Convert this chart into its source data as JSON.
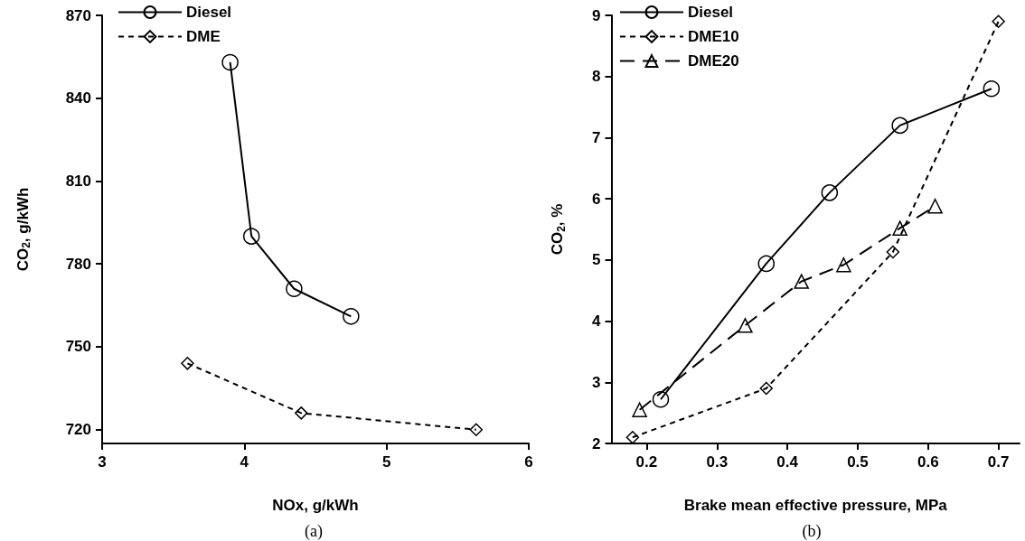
{
  "chart_data": [
    {
      "type": "line",
      "xlabel": "NOx, g/kWh",
      "ylabel": "CO$_{2}$, g/kWh",
      "annotations": [
        "(a)"
      ],
      "xlim": [
        3,
        6
      ],
      "xticks": [
        3,
        4,
        5,
        6
      ],
      "ylim": [
        715,
        870
      ],
      "yticks": [
        720,
        750,
        780,
        810,
        840,
        870
      ],
      "grid": false,
      "legend": "top left",
      "series": [
        {
          "name": "Diesel",
          "color": "#000000",
          "marker": "circle",
          "line_style": "solid",
          "x": [
            3.9,
            4.05,
            4.35,
            4.75
          ],
          "values": [
            853,
            790,
            771,
            761
          ]
        },
        {
          "name": "DME",
          "color": "#000000",
          "marker": "diamond",
          "line_style": "dotted",
          "x": [
            3.6,
            4.4,
            5.63
          ],
          "values": [
            744,
            726,
            720
          ]
        }
      ]
    },
    {
      "type": "line",
      "xlabel": "Brake mean effective pressure, MPa",
      "ylabel": "CO$_{2}$, %",
      "annotations": [
        "(b)"
      ],
      "xlim": [
        0.15,
        0.73
      ],
      "xticks": [
        0.2,
        0.3,
        0.4,
        0.5,
        0.6,
        0.7
      ],
      "ylim": [
        2,
        9
      ],
      "yticks": [
        2,
        3,
        4,
        5,
        6,
        7,
        8,
        9
      ],
      "grid": false,
      "legend": "top left",
      "series": [
        {
          "name": "Diesel",
          "color": "#000000",
          "marker": "circle",
          "line_style": "solid",
          "x": [
            0.22,
            0.37,
            0.46,
            0.56,
            0.69
          ],
          "values": [
            2.72,
            4.94,
            6.1,
            7.2,
            7.8
          ]
        },
        {
          "name": "DME10",
          "color": "#000000",
          "marker": "diamond",
          "line_style": "dotted",
          "x": [
            0.18,
            0.37,
            0.55,
            0.7
          ],
          "values": [
            2.1,
            2.9,
            5.13,
            8.9
          ]
        },
        {
          "name": "DME20",
          "color": "#000000",
          "marker": "triangle",
          "line_style": "dashed",
          "x": [
            0.19,
            0.34,
            0.42,
            0.48,
            0.56,
            0.61
          ],
          "values": [
            2.55,
            3.93,
            4.65,
            4.92,
            5.52,
            5.88
          ]
        }
      ]
    }
  ]
}
